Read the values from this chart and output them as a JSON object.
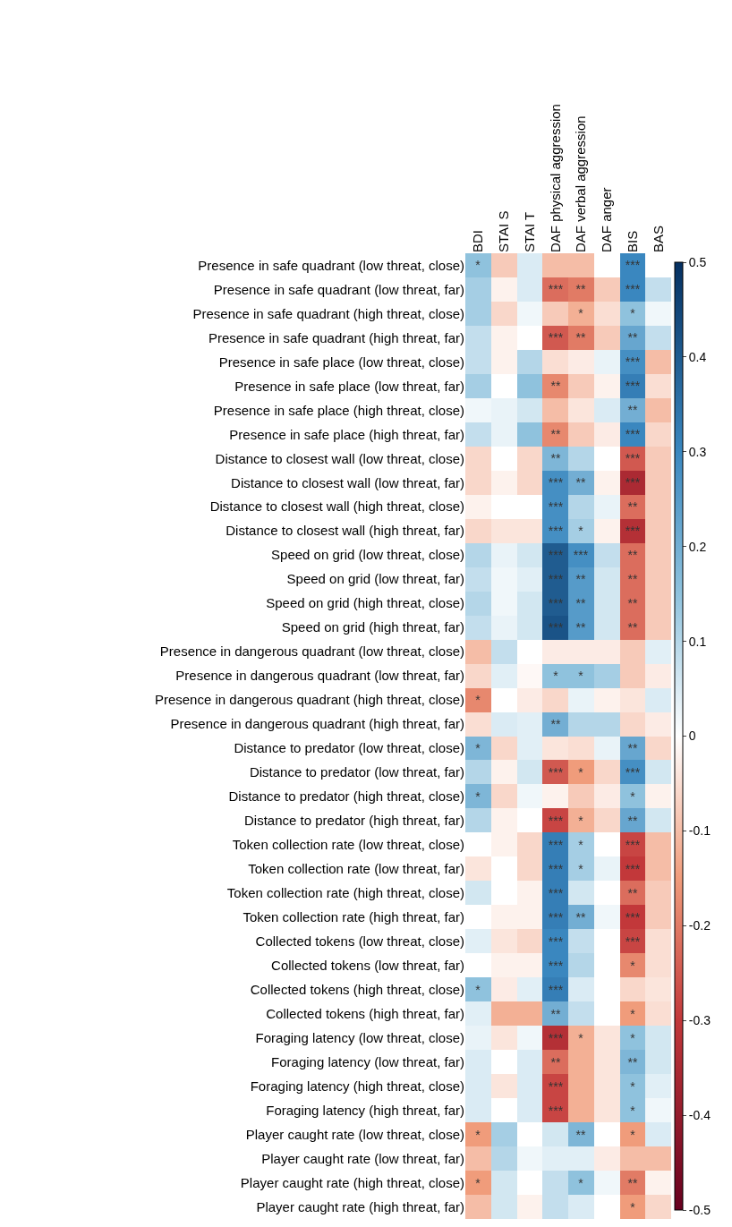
{
  "chart_data": {
    "type": "heatmap",
    "categories": [
      "BDI",
      "STAI S",
      "STAI T",
      "DAF physical aggression",
      "DAF verbal aggression",
      "DAF anger",
      "BIS",
      "BAS"
    ],
    "y_categories": [
      "Presence in safe quadrant (low threat, close)",
      "Presence in safe quadrant (low threat, far)",
      "Presence in safe quadrant (high threat, close)",
      "Presence in safe quadrant (high threat, far)",
      "Presence in safe place (low threat, close)",
      "Presence in safe place (low threat, far)",
      "Presence in safe place (high threat, close)",
      "Presence in safe place (high threat, far)",
      "Distance to closest wall (low threat, close)",
      "Distance to closest wall (low threat, far)",
      "Distance to closest wall (high threat, close)",
      "Distance to closest wall (high threat, far)",
      "Speed on grid (low threat, close)",
      "Speed on grid (low threat, far)",
      "Speed on grid (high threat, close)",
      "Speed on grid (high threat, far)",
      "Presence in dangerous quadrant (low threat, close)",
      "Presence in dangerous quadrant (low threat, far)",
      "Presence in dangerous quadrant (high threat, close)",
      "Presence in dangerous quadrant (high threat, far)",
      "Distance to predator (low threat, close)",
      "Distance to predator (low threat, far)",
      "Distance to predator (high threat, close)",
      "Distance to predator (high threat, far)",
      "Token collection rate (low threat, close)",
      "Token collection rate (low threat, far)",
      "Token collection rate (high threat, close)",
      "Token collection rate (high threat, far)",
      "Collected tokens (low threat, close)",
      "Collected tokens (low threat, far)",
      "Collected tokens (high threat, close)",
      "Collected tokens (high threat, far)",
      "Foraging latency (low threat, close)",
      "Foraging latency (low threat, far)",
      "Foraging latency (high threat, close)",
      "Foraging latency (high threat, far)",
      "Player caught rate (low threat, close)",
      "Player caught rate (low threat, far)",
      "Player caught rate (high threat, close)",
      "Player caught rate (high threat, far)"
    ],
    "cells": [
      [
        0.15,
        -0.08,
        0.05,
        -0.1,
        -0.1,
        0.0,
        0.3,
        0.0
      ],
      [
        0.12,
        -0.02,
        0.05,
        -0.22,
        -0.2,
        -0.08,
        0.3,
        0.08
      ],
      [
        0.12,
        -0.06,
        0.02,
        -0.08,
        -0.12,
        -0.05,
        0.15,
        0.02
      ],
      [
        0.08,
        -0.02,
        0.0,
        -0.25,
        -0.2,
        -0.08,
        0.22,
        0.08
      ],
      [
        0.08,
        -0.02,
        0.1,
        -0.05,
        -0.03,
        0.03,
        0.28,
        -0.1
      ],
      [
        0.12,
        0.0,
        0.15,
        -0.18,
        -0.08,
        -0.02,
        0.32,
        -0.05
      ],
      [
        0.02,
        0.03,
        0.06,
        -0.1,
        -0.04,
        0.05,
        0.2,
        -0.1
      ],
      [
        0.08,
        0.03,
        0.15,
        -0.18,
        -0.08,
        -0.03,
        0.3,
        -0.06
      ],
      [
        -0.06,
        0.0,
        -0.06,
        0.18,
        0.1,
        0.0,
        -0.25,
        -0.08
      ],
      [
        -0.06,
        -0.02,
        -0.06,
        0.28,
        0.2,
        -0.02,
        -0.35,
        -0.08
      ],
      [
        -0.02,
        0.0,
        0.0,
        0.28,
        0.1,
        0.03,
        -0.22,
        -0.08
      ],
      [
        -0.06,
        -0.04,
        -0.04,
        0.28,
        0.12,
        -0.02,
        -0.33,
        -0.08
      ],
      [
        0.1,
        0.03,
        0.06,
        0.4,
        0.28,
        0.08,
        -0.22,
        -0.08
      ],
      [
        0.08,
        0.02,
        0.04,
        0.4,
        0.25,
        0.06,
        -0.22,
        -0.08
      ],
      [
        0.1,
        0.02,
        0.06,
        0.4,
        0.25,
        0.06,
        -0.22,
        -0.08
      ],
      [
        0.08,
        0.03,
        0.06,
        0.42,
        0.25,
        0.06,
        -0.22,
        -0.08
      ],
      [
        -0.1,
        0.08,
        0.0,
        -0.03,
        -0.03,
        -0.03,
        -0.08,
        0.04
      ],
      [
        -0.06,
        0.04,
        -0.01,
        0.15,
        0.15,
        0.12,
        -0.08,
        -0.03
      ],
      [
        -0.18,
        0.0,
        -0.03,
        -0.06,
        0.03,
        -0.02,
        -0.04,
        0.05
      ],
      [
        -0.05,
        0.05,
        0.04,
        0.2,
        0.1,
        0.1,
        -0.06,
        -0.03
      ],
      [
        0.18,
        -0.06,
        0.04,
        -0.04,
        -0.05,
        0.03,
        0.22,
        -0.06
      ],
      [
        0.1,
        -0.02,
        0.06,
        -0.25,
        -0.15,
        -0.06,
        0.28,
        0.06
      ],
      [
        0.18,
        -0.06,
        0.02,
        -0.02,
        -0.08,
        -0.03,
        0.15,
        -0.02
      ],
      [
        0.1,
        -0.02,
        0.0,
        -0.28,
        -0.12,
        -0.06,
        0.22,
        0.06
      ],
      [
        0.0,
        -0.02,
        -0.06,
        0.32,
        0.12,
        0.0,
        -0.28,
        -0.1
      ],
      [
        -0.04,
        0.0,
        -0.06,
        0.32,
        0.12,
        0.03,
        -0.3,
        -0.1
      ],
      [
        0.06,
        0.0,
        -0.02,
        0.32,
        0.06,
        0.0,
        -0.22,
        -0.08
      ],
      [
        0.0,
        -0.02,
        -0.02,
        0.32,
        0.2,
        0.02,
        -0.3,
        -0.08
      ],
      [
        0.04,
        -0.04,
        -0.06,
        0.3,
        0.08,
        0.0,
        -0.28,
        -0.05
      ],
      [
        0.0,
        -0.02,
        -0.02,
        0.3,
        0.1,
        0.0,
        -0.18,
        -0.05
      ],
      [
        0.15,
        -0.03,
        0.04,
        0.32,
        0.05,
        0.0,
        -0.06,
        -0.04
      ],
      [
        0.04,
        -0.12,
        -0.12,
        0.2,
        0.08,
        0.0,
        -0.15,
        -0.05
      ],
      [
        0.03,
        -0.04,
        0.02,
        -0.33,
        -0.12,
        -0.04,
        0.15,
        0.06
      ],
      [
        0.05,
        0.0,
        0.05,
        -0.22,
        -0.12,
        -0.04,
        0.18,
        0.06
      ],
      [
        0.05,
        -0.04,
        0.05,
        -0.28,
        -0.12,
        -0.04,
        0.15,
        0.04
      ],
      [
        0.05,
        0.0,
        0.05,
        -0.28,
        -0.12,
        -0.04,
        0.15,
        0.02
      ],
      [
        -0.15,
        0.12,
        0.0,
        0.06,
        0.18,
        0.0,
        -0.15,
        0.05
      ],
      [
        -0.1,
        0.1,
        0.02,
        0.04,
        0.04,
        -0.03,
        -0.1,
        -0.1
      ],
      [
        -0.15,
        0.06,
        0.0,
        0.08,
        0.15,
        0.02,
        -0.2,
        -0.02
      ],
      [
        -0.1,
        0.06,
        -0.02,
        0.08,
        0.05,
        0.0,
        -0.15,
        -0.06
      ]
    ],
    "cell_labels": [
      [
        "*",
        null,
        null,
        null,
        null,
        null,
        "***",
        null
      ],
      [
        null,
        null,
        null,
        "***",
        "**",
        null,
        "***",
        null
      ],
      [
        null,
        null,
        null,
        null,
        "*",
        null,
        "*",
        null
      ],
      [
        null,
        null,
        null,
        "***",
        "**",
        null,
        "**",
        null
      ],
      [
        null,
        null,
        null,
        null,
        null,
        null,
        "***",
        null
      ],
      [
        null,
        null,
        null,
        "**",
        null,
        null,
        "***",
        null
      ],
      [
        null,
        null,
        null,
        null,
        null,
        null,
        "**",
        null
      ],
      [
        null,
        null,
        null,
        "**",
        null,
        null,
        "***",
        null
      ],
      [
        null,
        null,
        null,
        "**",
        null,
        null,
        "***",
        null
      ],
      [
        null,
        null,
        null,
        "***",
        "**",
        null,
        "***",
        null
      ],
      [
        null,
        null,
        null,
        "***",
        null,
        null,
        "**",
        null
      ],
      [
        null,
        null,
        null,
        "***",
        "*",
        null,
        "***",
        null
      ],
      [
        null,
        null,
        null,
        "***",
        "***",
        null,
        "**",
        null
      ],
      [
        null,
        null,
        null,
        "***",
        "**",
        null,
        "**",
        null
      ],
      [
        null,
        null,
        null,
        "***",
        "**",
        null,
        "**",
        null
      ],
      [
        null,
        null,
        null,
        "***",
        "**",
        null,
        "**",
        null
      ],
      [
        null,
        null,
        null,
        null,
        null,
        null,
        null,
        null
      ],
      [
        null,
        null,
        null,
        "*",
        "*",
        null,
        null,
        null
      ],
      [
        "*",
        null,
        null,
        null,
        null,
        null,
        null,
        null
      ],
      [
        null,
        null,
        null,
        "**",
        null,
        null,
        null,
        null
      ],
      [
        "*",
        null,
        null,
        null,
        null,
        null,
        "**",
        null
      ],
      [
        null,
        null,
        null,
        "***",
        "*",
        null,
        "***",
        null
      ],
      [
        "*",
        null,
        null,
        null,
        null,
        null,
        "*",
        null
      ],
      [
        null,
        null,
        null,
        "***",
        "*",
        null,
        "**",
        null
      ],
      [
        null,
        null,
        null,
        "***",
        "*",
        null,
        "***",
        null
      ],
      [
        null,
        null,
        null,
        "***",
        "*",
        null,
        "***",
        null
      ],
      [
        null,
        null,
        null,
        "***",
        null,
        null,
        "**",
        null
      ],
      [
        null,
        null,
        null,
        "***",
        "**",
        null,
        "***",
        null
      ],
      [
        null,
        null,
        null,
        "***",
        null,
        null,
        "***",
        null
      ],
      [
        null,
        null,
        null,
        "***",
        null,
        null,
        "*",
        null
      ],
      [
        "*",
        null,
        null,
        "***",
        null,
        null,
        null,
        null
      ],
      [
        null,
        null,
        null,
        "**",
        null,
        null,
        "*",
        null
      ],
      [
        null,
        null,
        null,
        "***",
        "*",
        null,
        "*",
        null
      ],
      [
        null,
        null,
        null,
        "**",
        null,
        null,
        "**",
        null
      ],
      [
        null,
        null,
        null,
        "***",
        null,
        null,
        "*",
        null
      ],
      [
        null,
        null,
        null,
        "***",
        null,
        null,
        "*",
        null
      ],
      [
        "*",
        null,
        null,
        null,
        "**",
        null,
        "*",
        null
      ],
      [
        null,
        null,
        null,
        null,
        null,
        null,
        null,
        null
      ],
      [
        "*",
        null,
        null,
        null,
        "*",
        null,
        "**",
        null
      ],
      [
        null,
        null,
        null,
        null,
        null,
        null,
        "*",
        null
      ]
    ],
    "clim": [
      -0.5,
      0.5
    ],
    "cticks": [
      -0.5,
      -0.4,
      -0.3,
      -0.2,
      -0.1,
      0,
      0.1,
      0.2,
      0.3,
      0.4,
      0.5
    ]
  }
}
